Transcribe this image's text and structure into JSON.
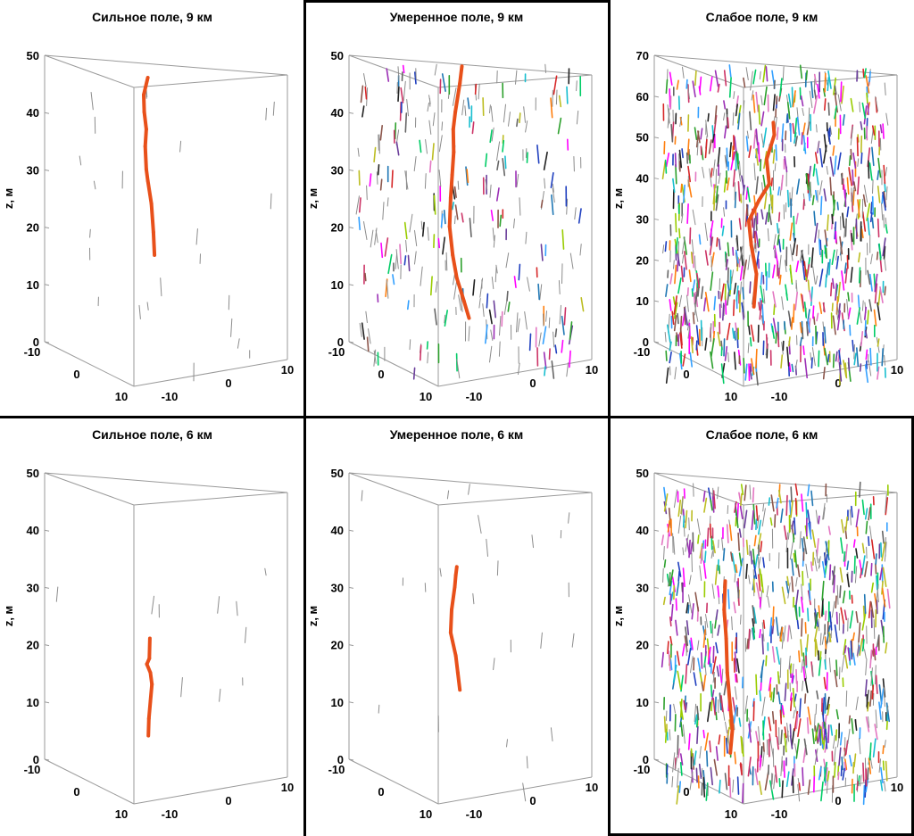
{
  "figure": {
    "z_axis_label": "z, м",
    "colors": {
      "crack": "#e8501a",
      "random_gray": "#8c8c8c",
      "palette": [
        "#1f3fbf",
        "#2ca02c",
        "#9b2fb5",
        "#d62728",
        "#17becf",
        "#bcbd22",
        "#e377c2",
        "#8c564b",
        "#1f77b4",
        "#ff00ff",
        "#00cc66",
        "#6a3d9a",
        "#ff7f0e",
        "#222222",
        "#33a0ff",
        "#99cc00",
        "#cc3366",
        "#666666"
      ]
    }
  },
  "chart_data": [
    {
      "type": "3d-line",
      "title": "Сильное поле, 9 км",
      "zlim": [
        0,
        50
      ],
      "z_ticks": [
        "0",
        "10",
        "20",
        "30",
        "40",
        "50"
      ],
      "x_ticks": [
        "-10",
        "0",
        "10"
      ],
      "y_ticks": [
        "-10",
        "0",
        "10"
      ],
      "segment_density": "sparse",
      "crack": [
        [
          -4,
          2,
          19
        ],
        [
          -4.2,
          2,
          23
        ],
        [
          -4.6,
          2,
          28
        ],
        [
          -5.3,
          2,
          32
        ],
        [
          -5.6,
          2,
          34
        ],
        [
          -5.8,
          2,
          38
        ],
        [
          -5.6,
          2,
          41
        ],
        [
          -6,
          2,
          44
        ],
        [
          -6.1,
          2,
          47
        ],
        [
          -5.3,
          2,
          50
        ]
      ]
    },
    {
      "type": "3d-line",
      "title": "Умеренное поле, 9 км",
      "zlim": [
        0,
        50
      ],
      "z_ticks": [
        "0",
        "10",
        "20",
        "30",
        "40",
        "50"
      ],
      "x_ticks": [
        "-10",
        "0",
        "10"
      ],
      "y_ticks": [
        "-10",
        "0",
        "10"
      ],
      "segment_density": "moderate",
      "crack": [
        [
          -2,
          2,
          8
        ],
        [
          -3,
          2,
          11
        ],
        [
          -4.4,
          2,
          15
        ],
        [
          -5.2,
          2,
          19
        ],
        [
          -5.8,
          2,
          24
        ],
        [
          -5.6,
          2,
          29
        ],
        [
          -5.3,
          2,
          33
        ],
        [
          -5,
          2,
          37
        ],
        [
          -5.1,
          2,
          41
        ],
        [
          -4.7,
          2,
          44
        ],
        [
          -3.8,
          2,
          49
        ],
        [
          -3.4,
          2,
          52
        ]
      ]
    },
    {
      "type": "3d-line",
      "title": "Слабое поле, 9 км",
      "zlim": [
        0,
        70
      ],
      "z_ticks": [
        "0",
        "10",
        "20",
        "30",
        "40",
        "50",
        "60",
        "70"
      ],
      "x_ticks": [
        "-10",
        "0",
        "10"
      ],
      "y_ticks": [
        "-10",
        "0",
        "10"
      ],
      "segment_density": "dense",
      "crack": [
        [
          -6,
          2,
          14
        ],
        [
          -5.5,
          2,
          22
        ],
        [
          -6.5,
          2,
          29
        ],
        [
          -7,
          2,
          35
        ],
        [
          -5,
          2,
          40
        ],
        [
          -3,
          2,
          44
        ],
        [
          -3.5,
          2,
          50
        ],
        [
          -2,
          2,
          56
        ],
        [
          -2.2,
          2,
          59
        ]
      ]
    },
    {
      "type": "3d-line",
      "title": "Сильное поле, 6 км",
      "zlim": [
        0,
        50
      ],
      "z_ticks": [
        "0",
        "10",
        "20",
        "30",
        "40",
        "50"
      ],
      "x_ticks": [
        "-10",
        "0",
        "10"
      ],
      "y_ticks": [
        "-10",
        "0",
        "10"
      ],
      "segment_density": "very sparse",
      "crack": [
        [
          -5.2,
          2,
          8
        ],
        [
          -5.1,
          2,
          11
        ],
        [
          -4.8,
          2,
          14
        ],
        [
          -4.5,
          2,
          17
        ],
        [
          -4.8,
          2,
          19
        ],
        [
          -5.5,
          2,
          20.5
        ],
        [
          -5.0,
          2,
          21.5
        ],
        [
          -4.9,
          2,
          25
        ]
      ]
    },
    {
      "type": "3d-line",
      "title": "Умеренное поле, 6 км",
      "zlim": [
        0,
        50
      ],
      "z_ticks": [
        "0",
        "10",
        "20",
        "30",
        "40",
        "50"
      ],
      "x_ticks": [
        "-10",
        "0",
        "10"
      ],
      "y_ticks": [
        "-10",
        "0",
        "10"
      ],
      "segment_density": "sparse",
      "crack": [
        [
          -3.8,
          2,
          16
        ],
        [
          -4.2,
          2,
          19
        ],
        [
          -4.6,
          2,
          22
        ],
        [
          -5.6,
          2,
          26
        ],
        [
          -5.4,
          2,
          30
        ],
        [
          -4.8,
          2,
          34
        ],
        [
          -4.6,
          2,
          36
        ],
        [
          -4.4,
          2,
          37.5
        ]
      ]
    },
    {
      "type": "3d-line",
      "title": "Слабое поле, 6 км",
      "zlim": [
        0,
        50
      ],
      "z_ticks": [
        "0",
        "10",
        "20",
        "30",
        "40",
        "50"
      ],
      "x_ticks": [
        "-10",
        "0",
        "10"
      ],
      "y_ticks": [
        "-10",
        "0",
        "10"
      ],
      "segment_density": "dense",
      "crack": [
        [
          -10.6,
          2,
          5
        ],
        [
          -10.2,
          2,
          9
        ],
        [
          -10.6,
          2,
          13
        ],
        [
          -11.2,
          2,
          19
        ],
        [
          -11.4,
          2,
          25
        ],
        [
          -11.8,
          2,
          30
        ],
        [
          -11.6,
          2,
          35
        ]
      ]
    }
  ]
}
